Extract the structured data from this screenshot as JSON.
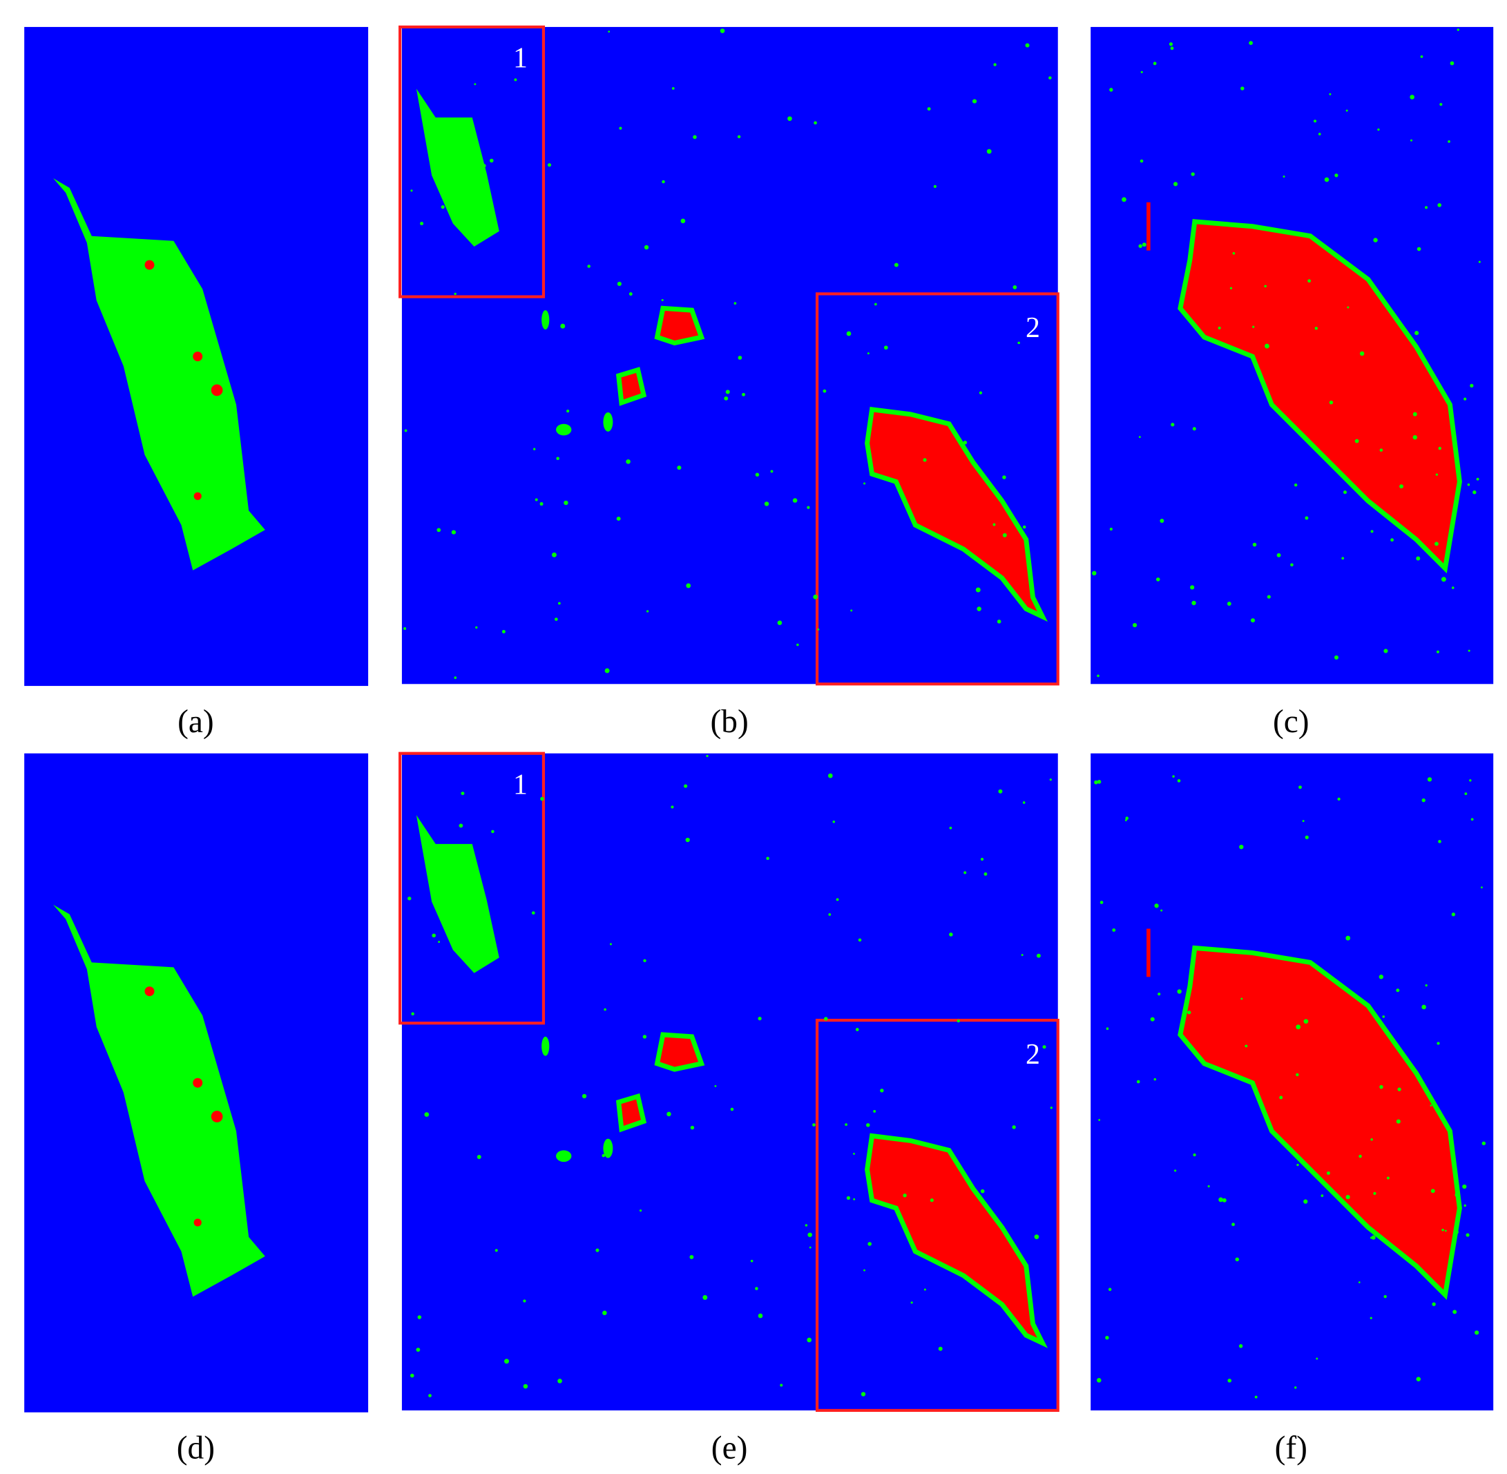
{
  "panels": [
    {
      "label": "(a)"
    },
    {
      "label": "(b)",
      "boxes": [
        "1",
        "2"
      ]
    },
    {
      "label": "(c)"
    },
    {
      "label": "(d)"
    },
    {
      "label": "(e)",
      "boxes": [
        "1",
        "2"
      ]
    },
    {
      "label": "(f)"
    }
  ]
}
